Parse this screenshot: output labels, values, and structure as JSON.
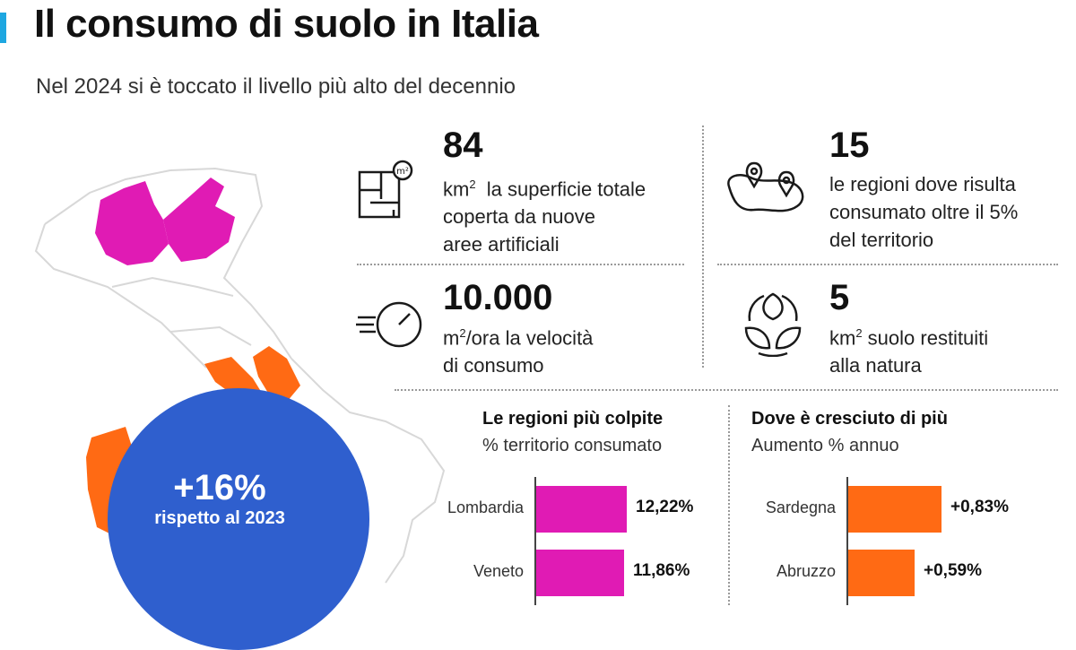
{
  "header": {
    "title": "Il consumo di suolo in Italia",
    "subtitle": "Nel 2024 si è toccato il livello più alto del decennio"
  },
  "colors": {
    "accent": "#1ea7e1",
    "highlight_magenta": "#e01bb4",
    "highlight_orange": "#ff6a14",
    "circle_blue": "#2f5fce"
  },
  "circle": {
    "big": "+16%",
    "small": "rispetto al 2023"
  },
  "stats": [
    {
      "icon": "floor-plan-icon",
      "number": "84",
      "unit": "km",
      "unit_sup": "2",
      "lines": [
        "la superficie totale",
        "coperta da nuove",
        "aree artificiali"
      ]
    },
    {
      "icon": "map-pins-icon",
      "number": "15",
      "lines": [
        "le regioni dove risulta",
        "consumato oltre il 5%",
        "del territorio"
      ]
    },
    {
      "icon": "speedometer-icon",
      "number": "10.000",
      "unit": "m",
      "unit_sup": "2",
      "lines": [
        "/ora la velocità",
        "di consumo"
      ]
    },
    {
      "icon": "leaves-cycle-icon",
      "number": "5",
      "unit": "km",
      "unit_sup": "2",
      "lines": [
        " suolo restituiti",
        "alla natura"
      ]
    }
  ],
  "chart_data": [
    {
      "type": "bar",
      "orientation": "horizontal",
      "title": "Le regioni più colpite",
      "subtitle": "% territorio consumato",
      "categories": [
        "Lombardia",
        "Veneto"
      ],
      "values": [
        12.22,
        11.86
      ],
      "value_labels": [
        "12,22%",
        "11,86%"
      ],
      "color": "#e01bb4",
      "xlim": [
        0,
        12.6
      ]
    },
    {
      "type": "bar",
      "orientation": "horizontal",
      "title": "Dove è cresciuto di più",
      "subtitle": "Aumento % annuo",
      "categories": [
        "Sardegna",
        "Abruzzo"
      ],
      "values": [
        0.83,
        0.59
      ],
      "value_labels": [
        "+0,83%",
        "+0,59%"
      ],
      "color": "#ff6a14",
      "xlim": [
        0,
        0.83
      ]
    }
  ]
}
